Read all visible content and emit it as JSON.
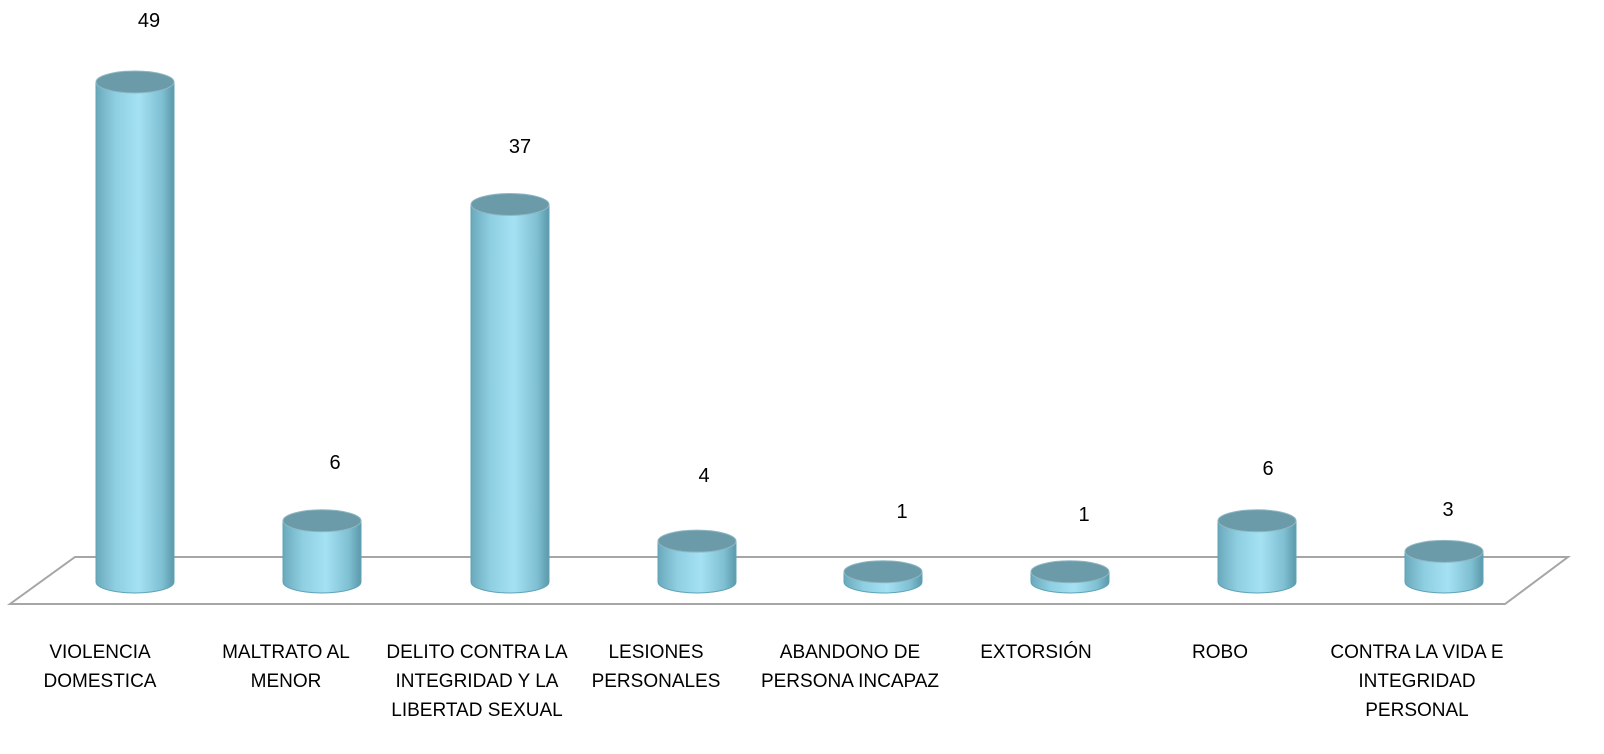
{
  "chart_data": {
    "type": "bar",
    "categories": [
      "VIOLENCIA DOMESTICA",
      "MALTRATO AL MENOR",
      "DELITO CONTRA LA INTEGRIDAD Y LA LIBERTAD SEXUAL",
      "LESIONES PERSONALES",
      "ABANDONO  DE PERSONA INCAPAZ",
      "EXTORSIÓN",
      "ROBO",
      "CONTRA LA VIDA E INTEGRIDAD PERSONAL"
    ],
    "values": [
      49,
      6,
      37,
      4,
      1,
      1,
      6,
      3
    ],
    "value_labels": [
      "49",
      "6",
      "37",
      "4",
      "1",
      "1",
      "6",
      "3"
    ],
    "title": "",
    "xlabel": "",
    "ylabel": "",
    "ylim": [
      0,
      49
    ],
    "grid": false,
    "legend": "none",
    "style": "3d-cylinder",
    "colors": {
      "bar_body": "#9fdcef",
      "bar_edge": "#5fa3b6",
      "bar_top": "#6b9ba8",
      "floor_line": "#a6a6a6"
    }
  }
}
